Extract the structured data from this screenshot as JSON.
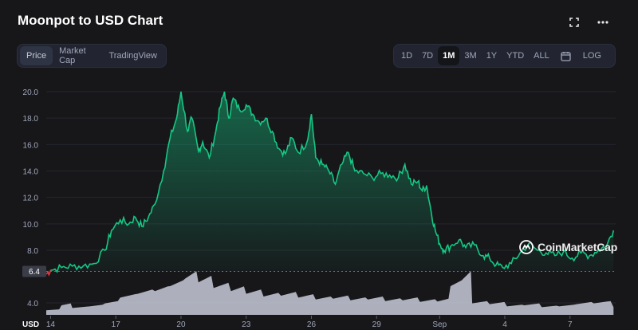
{
  "header": {
    "title": "Moonpot to USD Chart"
  },
  "icons": {
    "fullscreen": "fullscreen-icon",
    "more": "more-icon",
    "calendar": "calendar-icon"
  },
  "view_tabs": [
    "Price",
    "Market Cap",
    "TradingView"
  ],
  "range_tabs": [
    "1D",
    "7D",
    "1M",
    "3M",
    "1Y",
    "YTD",
    "ALL"
  ],
  "log_label": "LOG",
  "active_view": "Price",
  "active_range": "1M",
  "watermark": "CoinMarketCap",
  "colors": {
    "background": "#17171a",
    "line": "#16c784",
    "below_start": "#ea3943",
    "volume": "#c8cbd9",
    "grid": "#24262e"
  },
  "chart_data": {
    "type": "area",
    "currency": "USD",
    "x_ticks": [
      "14",
      "17",
      "20",
      "23",
      "26",
      "29",
      "Sep",
      "4",
      "7"
    ],
    "y_ticks": [
      20.0,
      18.0,
      16.0,
      14.0,
      12.0,
      10.0,
      8.0,
      4.0
    ],
    "y_ticks_labels": [
      "20.0",
      "18.0",
      "16.0",
      "14.0",
      "12.0",
      "10.0",
      "8.0",
      "4.0"
    ],
    "ylim": [
      6.0,
      21.0
    ],
    "baseline": 6.4,
    "baseline_label": "6.4",
    "x_range": [
      13.8,
      40.0
    ],
    "series": [
      {
        "points": [
          [
            13.8,
            6.2
          ],
          [
            14.0,
            6.5
          ],
          [
            14.5,
            6.7
          ],
          [
            15.0,
            6.8
          ],
          [
            15.5,
            6.8
          ],
          [
            16.0,
            7.0
          ],
          [
            16.5,
            8.0
          ],
          [
            16.8,
            9.5
          ],
          [
            17.2,
            10.3
          ],
          [
            17.6,
            10.0
          ],
          [
            17.9,
            10.5
          ],
          [
            18.2,
            9.8
          ],
          [
            18.5,
            10.5
          ],
          [
            18.8,
            11.5
          ],
          [
            19.2,
            14.0
          ],
          [
            19.5,
            16.5
          ],
          [
            19.8,
            18.0
          ],
          [
            20.0,
            20.0
          ],
          [
            20.3,
            17.0
          ],
          [
            20.5,
            18.0
          ],
          [
            20.8,
            15.5
          ],
          [
            21.0,
            16.2
          ],
          [
            21.3,
            15.0
          ],
          [
            21.6,
            17.0
          ],
          [
            21.8,
            18.8
          ],
          [
            22.0,
            20.0
          ],
          [
            22.2,
            18.0
          ],
          [
            22.4,
            19.5
          ],
          [
            22.7,
            18.6
          ],
          [
            23.0,
            19.0
          ],
          [
            23.3,
            18.3
          ],
          [
            23.6,
            17.7
          ],
          [
            23.9,
            18.0
          ],
          [
            24.2,
            17.0
          ],
          [
            24.5,
            15.7
          ],
          [
            24.8,
            15.3
          ],
          [
            25.1,
            16.5
          ],
          [
            25.4,
            15.4
          ],
          [
            25.8,
            16.2
          ],
          [
            26.0,
            18.3
          ],
          [
            26.2,
            15.0
          ],
          [
            26.5,
            14.5
          ],
          [
            26.8,
            14.0
          ],
          [
            27.1,
            13.0
          ],
          [
            27.4,
            14.5
          ],
          [
            27.7,
            15.4
          ],
          [
            28.0,
            14.0
          ],
          [
            28.4,
            13.8
          ],
          [
            28.8,
            13.5
          ],
          [
            29.2,
            13.8
          ],
          [
            29.6,
            13.7
          ],
          [
            30.0,
            13.5
          ],
          [
            30.3,
            14.5
          ],
          [
            30.6,
            13.0
          ],
          [
            30.9,
            13.2
          ],
          [
            31.1,
            12.5
          ],
          [
            31.3,
            12.9
          ],
          [
            31.5,
            11.0
          ],
          [
            31.7,
            9.5
          ],
          [
            31.9,
            8.5
          ],
          [
            32.1,
            8.0
          ],
          [
            32.4,
            8.3
          ],
          [
            32.8,
            8.8
          ],
          [
            33.1,
            8.2
          ],
          [
            33.5,
            8.4
          ],
          [
            33.9,
            7.6
          ],
          [
            34.2,
            7.4
          ],
          [
            34.5,
            6.9
          ],
          [
            34.8,
            6.7
          ],
          [
            35.2,
            7.0
          ],
          [
            35.6,
            7.8
          ],
          [
            36.0,
            8.5
          ],
          [
            36.4,
            8.0
          ],
          [
            36.8,
            7.8
          ],
          [
            37.2,
            7.6
          ],
          [
            37.6,
            7.9
          ],
          [
            38.0,
            7.4
          ],
          [
            38.4,
            7.8
          ],
          [
            38.8,
            7.6
          ],
          [
            39.2,
            8.0
          ],
          [
            39.6,
            8.4
          ],
          [
            39.9,
            9.5
          ]
        ]
      }
    ],
    "volume": [
      [
        13.8,
        0.12
      ],
      [
        14.5,
        0.25
      ],
      [
        15.0,
        0.18
      ],
      [
        15.8,
        0.22
      ],
      [
        16.5,
        0.3
      ],
      [
        17.2,
        0.45
      ],
      [
        18.0,
        0.55
      ],
      [
        18.8,
        0.62
      ],
      [
        19.5,
        0.75
      ],
      [
        20.2,
        0.95
      ],
      [
        20.8,
        0.85
      ],
      [
        21.5,
        0.7
      ],
      [
        22.3,
        0.62
      ],
      [
        23.0,
        0.55
      ],
      [
        23.8,
        0.48
      ],
      [
        24.6,
        0.5
      ],
      [
        25.4,
        0.45
      ],
      [
        26.2,
        0.4
      ],
      [
        27.0,
        0.42
      ],
      [
        27.8,
        0.38
      ],
      [
        28.6,
        0.4
      ],
      [
        29.4,
        0.36
      ],
      [
        30.2,
        0.38
      ],
      [
        31.0,
        0.34
      ],
      [
        31.8,
        0.35
      ],
      [
        32.4,
        0.75
      ],
      [
        33.0,
        0.95
      ],
      [
        33.4,
        0.3
      ],
      [
        34.2,
        0.28
      ],
      [
        35.0,
        0.22
      ],
      [
        35.8,
        0.25
      ],
      [
        36.6,
        0.2
      ],
      [
        37.4,
        0.22
      ],
      [
        38.2,
        0.28
      ],
      [
        39.0,
        0.3
      ],
      [
        39.9,
        0.2
      ]
    ]
  }
}
